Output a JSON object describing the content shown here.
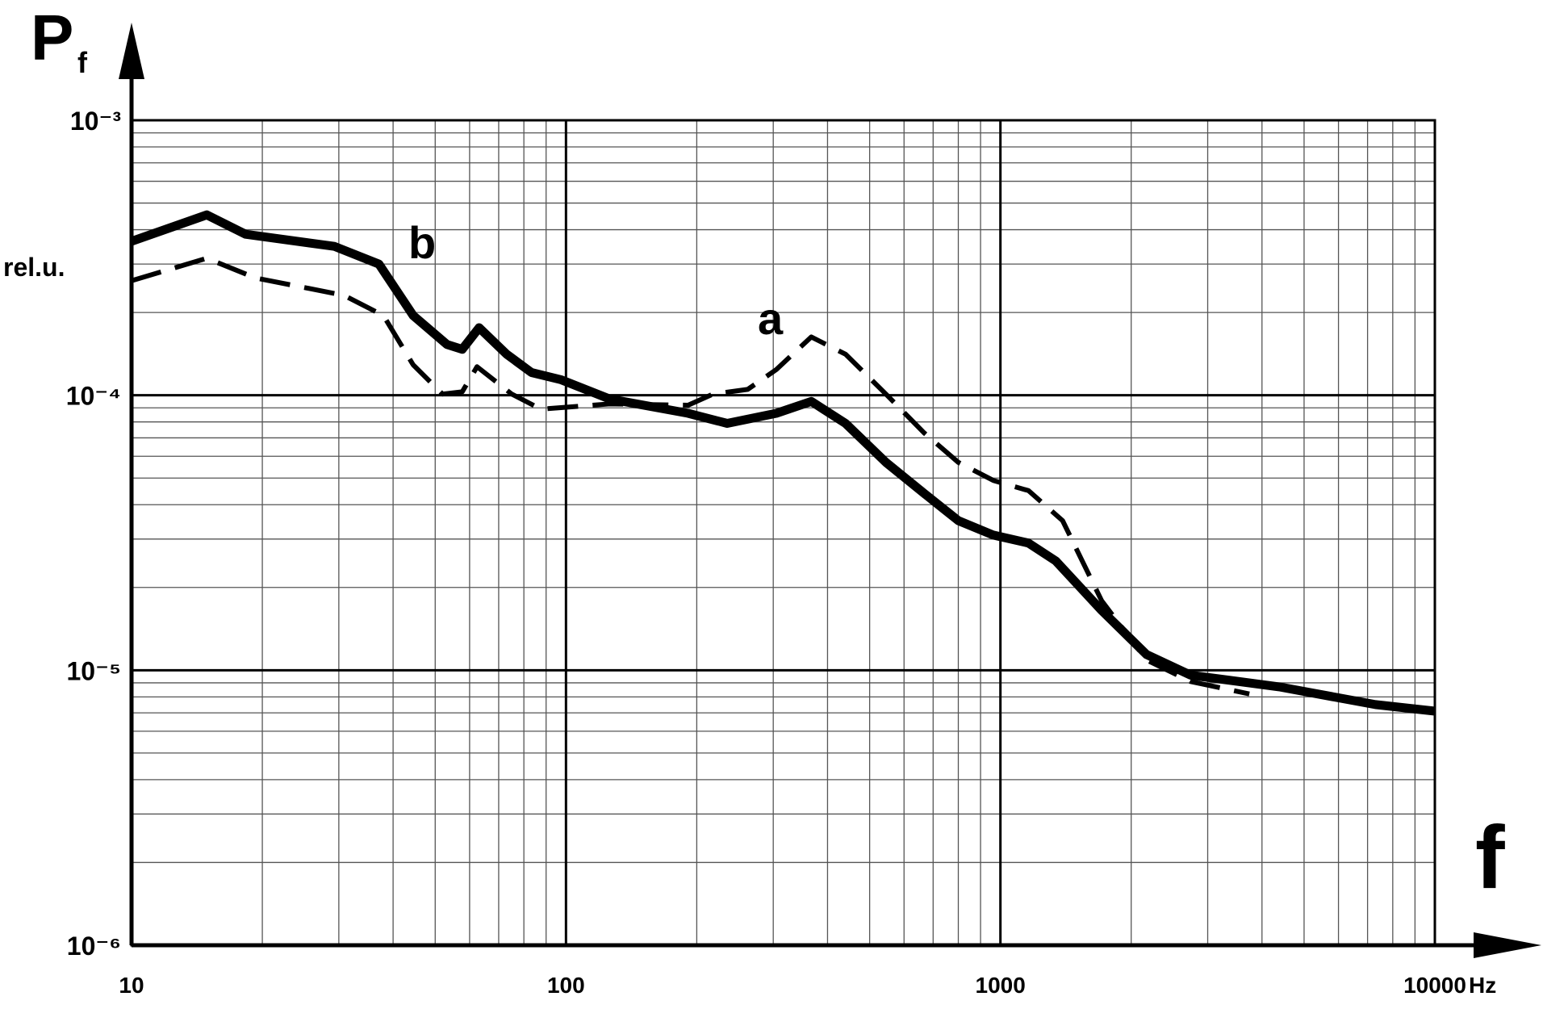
{
  "chart_data": {
    "type": "line",
    "ylabel": "P",
    "ylabel_subscript": "f",
    "yunit": "rel.u.",
    "xlabel": "f",
    "xunit": "Hz",
    "xscale": "log",
    "yscale": "log",
    "grid": true,
    "xlim": [
      10,
      10000
    ],
    "ylim": [
      1e-06,
      0.001
    ],
    "xticks": [
      10,
      100,
      1000,
      10000
    ],
    "yticks": [
      {
        "value": 1e-06,
        "label": "10⁻⁶"
      },
      {
        "value": 1e-05,
        "label": "10⁻⁵"
      },
      {
        "value": 0.0001,
        "label": "10⁻⁴"
      },
      {
        "value": 0.001,
        "label": "10⁻³"
      }
    ],
    "xminorticks": [
      20,
      30,
      40,
      50,
      60,
      70,
      80,
      90,
      200,
      300,
      400,
      500,
      600,
      700,
      800,
      900,
      2000,
      3000,
      4000,
      5000,
      6000,
      7000,
      8000,
      9000
    ],
    "yminorticks": [
      2e-06,
      3e-06,
      4e-06,
      5e-06,
      6e-06,
      7e-06,
      8e-06,
      9e-06,
      2e-05,
      3e-05,
      4e-05,
      5e-05,
      6e-05,
      7e-05,
      8e-05,
      9e-05,
      0.0002,
      0.0003,
      0.0004,
      0.0005,
      0.0006,
      0.0007,
      0.0008,
      0.0009
    ],
    "series": [
      {
        "name": "b",
        "color": "#000000",
        "style": "solid",
        "x": [
          10,
          14.9,
          18.3,
          29.3,
          37.1,
          44.5,
          53.2,
          57.7,
          63.1,
          73.0,
          83.3,
          97.2,
          126,
          191,
          235,
          305,
          367,
          440,
          545,
          667,
          800,
          963,
          1160,
          1340,
          1710,
          2170,
          2740,
          4380,
          7300,
          10000
        ],
        "values": [
          0.000363,
          0.000453,
          0.000385,
          0.000348,
          0.0003,
          0.000195,
          0.000153,
          0.000147,
          0.000176,
          0.000141,
          0.000121,
          0.000114,
          9.7e-05,
          8.6e-05,
          7.9e-05,
          8.6e-05,
          9.5e-05,
          7.9e-05,
          5.7e-05,
          4.4e-05,
          3.5e-05,
          3.1e-05,
          2.9e-05,
          2.5e-05,
          1.65e-05,
          1.14e-05,
          9.6e-06,
          8.7e-06,
          7.5e-06,
          7.1e-06
        ]
      },
      {
        "name": "a",
        "color": "#000000",
        "style": "dashed",
        "x": [
          10,
          14.9,
          19.3,
          30.8,
          38,
          44.5,
          52,
          57.7,
          62.4,
          75,
          87.6,
          126,
          191,
          218,
          262,
          305,
          367,
          440,
          545,
          667,
          800,
          963,
          1160,
          1390,
          1710,
          2170,
          2740,
          3740
        ],
        "values": [
          0.000261,
          0.000315,
          0.000267,
          0.000231,
          0.000195,
          0.000129,
          0.000101,
          0.000103,
          0.000127,
          0.000101,
          8.9e-05,
          9.3e-05,
          9.2e-05,
          0.000101,
          0.000105,
          0.000124,
          0.000163,
          0.000141,
          0.000101,
          7.3e-05,
          5.7e-05,
          4.9e-05,
          4.5e-05,
          3.5e-05,
          1.79e-05,
          1.09e-05,
          9.1e-06,
          8.2e-06
        ]
      }
    ]
  }
}
